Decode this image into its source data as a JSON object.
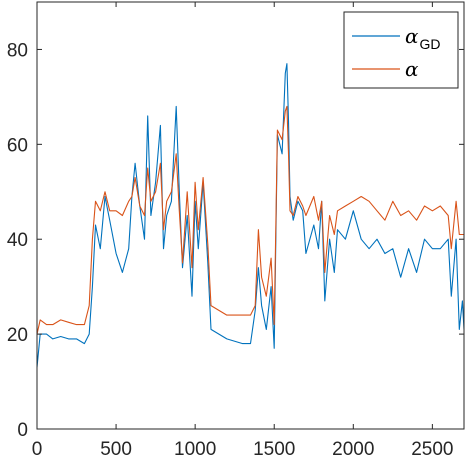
{
  "chart_data": {
    "type": "line",
    "title": "",
    "xlabel": "",
    "ylabel": "",
    "xlim": [
      0,
      2700
    ],
    "ylim": [
      0,
      90
    ],
    "xticks": [
      0,
      500,
      1000,
      1500,
      2000,
      2500
    ],
    "yticks": [
      0,
      20,
      40,
      60,
      80
    ],
    "grid": false,
    "legend_position": "top-right",
    "series": [
      {
        "name": "α_GD",
        "legend_main": "α",
        "legend_sub": "GD",
        "color": "#0072BD",
        "x": [
          0,
          20,
          60,
          100,
          150,
          200,
          250,
          300,
          330,
          350,
          370,
          400,
          430,
          460,
          500,
          540,
          580,
          600,
          620,
          650,
          680,
          700,
          720,
          750,
          780,
          800,
          820,
          850,
          880,
          900,
          920,
          950,
          980,
          1000,
          1020,
          1050,
          1080,
          1100,
          1200,
          1300,
          1350,
          1380,
          1400,
          1420,
          1450,
          1480,
          1500,
          1520,
          1550,
          1570,
          1580,
          1590,
          1600,
          1620,
          1650,
          1680,
          1700,
          1750,
          1780,
          1800,
          1820,
          1850,
          1880,
          1900,
          1950,
          2000,
          2050,
          2100,
          2150,
          2200,
          2250,
          2300,
          2350,
          2400,
          2450,
          2500,
          2550,
          2600,
          2620,
          2650,
          2670,
          2690,
          2700
        ],
        "y": [
          13,
          20,
          20,
          19,
          19.5,
          19,
          19,
          18,
          20,
          30,
          43,
          38,
          49,
          44,
          37,
          33,
          38,
          49,
          56,
          47,
          40,
          66,
          45,
          52,
          64,
          38,
          45,
          48,
          68,
          50,
          34,
          45,
          28,
          48,
          38,
          52,
          35,
          21,
          19,
          18,
          18,
          25,
          34,
          26,
          21,
          30,
          17,
          62,
          58,
          75,
          77,
          65,
          49,
          44,
          48,
          46,
          37,
          43,
          38,
          48,
          27,
          40,
          33,
          42,
          40,
          46,
          40,
          38,
          40,
          37,
          38,
          32,
          38,
          33,
          40,
          38,
          38,
          40,
          28,
          40,
          21,
          27,
          21
        ]
      },
      {
        "name": "α",
        "legend_main": "α",
        "legend_sub": "",
        "color": "#D95319",
        "x": [
          0,
          20,
          60,
          100,
          150,
          200,
          250,
          300,
          330,
          350,
          370,
          400,
          430,
          460,
          500,
          540,
          580,
          600,
          620,
          650,
          680,
          700,
          720,
          750,
          780,
          800,
          820,
          850,
          880,
          900,
          920,
          950,
          980,
          1000,
          1020,
          1050,
          1080,
          1100,
          1200,
          1300,
          1350,
          1380,
          1400,
          1420,
          1450,
          1480,
          1500,
          1520,
          1550,
          1570,
          1580,
          1590,
          1600,
          1620,
          1650,
          1680,
          1700,
          1750,
          1780,
          1800,
          1820,
          1850,
          1880,
          1900,
          1950,
          2000,
          2050,
          2100,
          2150,
          2200,
          2250,
          2300,
          2350,
          2400,
          2450,
          2500,
          2550,
          2600,
          2620,
          2650,
          2670,
          2690,
          2700
        ],
        "y": [
          20,
          23,
          22,
          22,
          23,
          22.5,
          22,
          22,
          26,
          40,
          48,
          46,
          50,
          46,
          46,
          45,
          48,
          49,
          53,
          47,
          45,
          55,
          48,
          50,
          56,
          42,
          48,
          50,
          58,
          46,
          35,
          50,
          34,
          52,
          42,
          53,
          39,
          26,
          24,
          24,
          24,
          26,
          42,
          32,
          28,
          36,
          22,
          63,
          61,
          67,
          68,
          58,
          46,
          45,
          49,
          47,
          45,
          49,
          44,
          48,
          33,
          45,
          41,
          46,
          47,
          48,
          49,
          48,
          46,
          44,
          48,
          45,
          46,
          44,
          47,
          46,
          47,
          45,
          38,
          48,
          41,
          41,
          41
        ]
      }
    ]
  }
}
